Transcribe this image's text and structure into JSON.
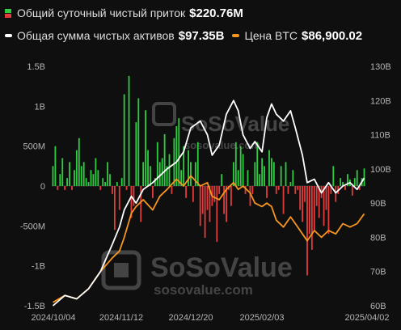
{
  "legend": {
    "net_inflow": {
      "label": "Общий суточный чистый приток",
      "value": "$220.76M",
      "color_pos": "#2ecc40",
      "color_neg": "#e03c3c"
    },
    "total_assets": {
      "label": "Общая сумма чистых активов",
      "value": "$97.35B",
      "color": "#ffffff"
    },
    "btc_price": {
      "label": "Цена BTC",
      "value": "$86,900.02",
      "color": "#f5961e"
    }
  },
  "watermark": {
    "brand": "SoSoValue",
    "url": "sosovalue.com"
  },
  "chart_data": {
    "type": "bar",
    "x_labels": [
      "2024/10/04",
      "2024/11/12",
      "2024/12/20",
      "2025/02/03",
      "2025/04/02"
    ],
    "y_left": {
      "ticks": [
        "1.5B",
        "1B",
        "500M",
        "0",
        "-500M",
        "-1B",
        "-1.5B"
      ],
      "lim": [
        -1.5,
        1.5
      ],
      "unit": "B USD"
    },
    "y_right": {
      "ticks": [
        "130B",
        "120B",
        "110B",
        "100B",
        "90B",
        "80B",
        "70B",
        "60B"
      ],
      "lim": [
        60,
        130
      ],
      "unit": "B"
    },
    "series": [
      {
        "name": "Общий суточный чистый приток",
        "kind": "bar",
        "values": [
          0.25,
          0.5,
          -0.05,
          0.15,
          0.35,
          -0.05,
          0.1,
          0.3,
          -0.05,
          0.2,
          0.45,
          0.6,
          0.25,
          0.3,
          0.1,
          0.05,
          0.2,
          0.15,
          0.35,
          0.2,
          -0.05,
          0.1,
          0.05,
          0.3,
          0.15,
          -0.1,
          -0.55,
          0.05,
          -0.3,
          0.1,
          1.15,
          -0.05,
          1.38,
          -0.4,
          -0.25,
          0.8,
          1.1,
          -0.45,
          0.3,
          0.95,
          0.45,
          0.25,
          -0.15,
          0.1,
          0.55,
          0.3,
          0.35,
          0.65,
          0.25,
          0.4,
          -0.1,
          0.6,
          0.75,
          0.85,
          0.2,
          0.5,
          -0.15,
          0.45,
          0.3,
          -0.2,
          0.3,
          0.55,
          -0.5,
          -0.35,
          -0.65,
          -0.3,
          -0.45,
          -0.25,
          -0.2,
          -0.7,
          -0.1,
          0.15,
          -0.35,
          -0.45,
          -0.05,
          -0.25,
          0.3,
          0.55,
          0.2,
          0.5,
          0.4,
          -0.1,
          0.2,
          -0.25,
          -0.1,
          0.3,
          0.55,
          0.15,
          0.35,
          0.25,
          -0.15,
          0.45,
          0.35,
          0.3,
          -0.1,
          -0.05,
          0.25,
          -0.35,
          0.3,
          -0.1,
          0.05,
          0.2,
          -0.1,
          -0.05,
          -0.3,
          -0.45,
          -0.2,
          -1.12,
          -0.6,
          -0.8,
          -0.55,
          -0.25,
          -0.4,
          -0.15,
          -0.5,
          -0.3,
          -0.6,
          -0.1,
          0.25,
          -0.2,
          -0.1,
          0.1,
          0.05,
          -0.05,
          0.15,
          0.08,
          -0.12,
          0.1,
          0.2,
          -0.05,
          0.1,
          0.22
        ]
      },
      {
        "name": "Общая сумма чистых активов",
        "kind": "line",
        "x": [
          0,
          5,
          10,
          15,
          20,
          25,
          28,
          30,
          33,
          35,
          38,
          42,
          45,
          48,
          52,
          55,
          58,
          62,
          65,
          67,
          70,
          73,
          76,
          78,
          80,
          83,
          85,
          88,
          90,
          92,
          94,
          97,
          100,
          102,
          105,
          107,
          110,
          113,
          116,
          119,
          122,
          125,
          128,
          131
        ],
        "values": [
          60,
          63,
          62,
          65,
          70,
          78,
          83,
          88,
          92,
          90,
          94,
          96,
          98,
          100,
          102,
          105,
          112,
          114,
          110,
          104,
          107,
          116,
          120,
          117,
          110,
          106,
          108,
          105,
          115,
          119,
          116,
          114,
          117,
          112,
          104,
          96,
          97,
          93,
          96,
          93,
          95,
          96,
          94,
          97.35
        ]
      },
      {
        "name": "Цена BTC",
        "kind": "line",
        "x": [
          0,
          5,
          10,
          15,
          20,
          25,
          28,
          30,
          33,
          35,
          38,
          42,
          45,
          48,
          52,
          55,
          58,
          62,
          65,
          67,
          70,
          73,
          76,
          78,
          80,
          83,
          85,
          88,
          90,
          92,
          94,
          97,
          100,
          102,
          105,
          107,
          110,
          113,
          116,
          119,
          122,
          125,
          128,
          131
        ],
        "values": [
          61,
          63,
          62,
          65,
          70,
          74,
          76,
          80,
          87,
          89,
          91,
          88,
          92,
          94,
          97,
          95,
          98,
          95,
          96,
          92,
          91,
          94,
          96,
          94,
          95,
          93,
          90,
          89,
          90,
          89,
          85,
          83,
          86,
          84,
          81,
          79,
          82,
          80,
          82,
          81,
          84,
          83,
          84,
          86.9
        ]
      }
    ],
    "grid": false,
    "legend_position": "top-left"
  }
}
